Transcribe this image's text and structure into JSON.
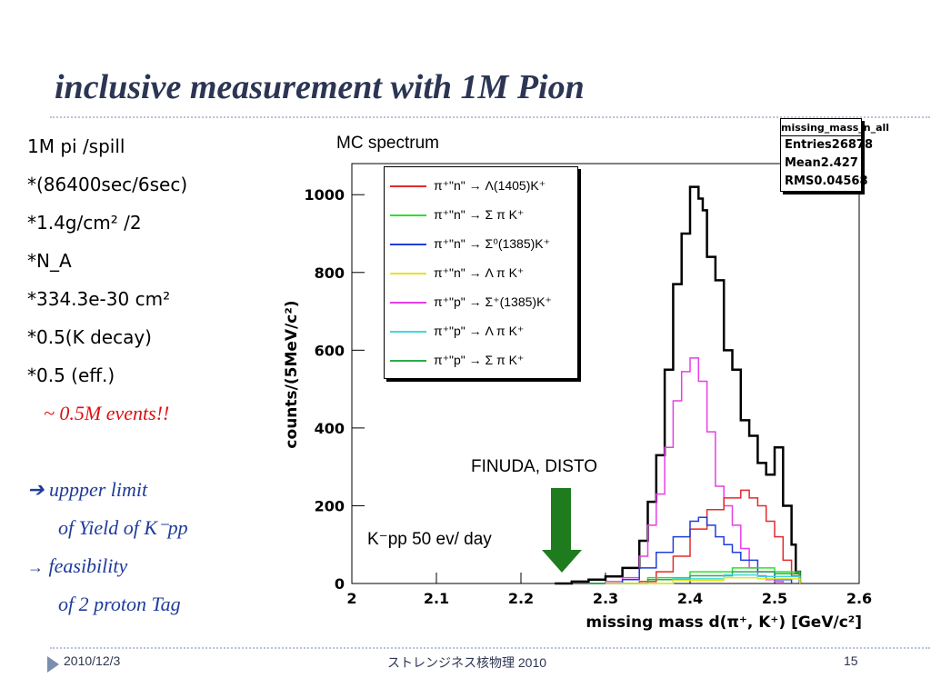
{
  "slide": {
    "title": "inclusive measurement with 1M Pion",
    "bullets": [
      "1M pi /spill",
      "*(86400sec/6sec)",
      "*1.4g/cm² /2",
      "*N_A",
      "*334.3e-30 cm²",
      "*0.5(K decay)",
      "*0.5 (eff.)"
    ],
    "events_note": "~ 0.5M events!!",
    "upper_limit": "uppper limit",
    "yield_line": "of Yield  of K⁻pp",
    "feasibility": "feasibility",
    "tag_line": "of 2 proton Tag",
    "mc_label": "MC spectrum",
    "finuda_label": "FINUDA, DISTO",
    "kpp_label": "K⁻pp 50 ev/ day",
    "footer_date": "2010/12/3",
    "footer_center": "ストレンジネス核物理 2010",
    "footer_page": "15",
    "colors": {
      "title": "#2c3553",
      "note": "#e01010",
      "accent": "#1f3c9a",
      "arrow": "#1e7b1e"
    }
  },
  "stats_box": {
    "name": "missing_mass_n_all",
    "rows": [
      {
        "label": "Entries",
        "value": "26878"
      },
      {
        "label": "Mean",
        "value": "2.427"
      },
      {
        "label": "RMS",
        "value": "0.04568"
      }
    ]
  },
  "chart_data": {
    "type": "line",
    "xlabel": "missing mass d(π⁺, K⁺) [GeV/c²]",
    "ylabel": "counts/(5MeV/c²)",
    "xlim": [
      2.0,
      2.6
    ],
    "ylim": [
      0,
      1080
    ],
    "x_ticks": [
      "2",
      "2.1",
      "2.2",
      "2.3",
      "2.4",
      "2.5",
      "2.6"
    ],
    "y_ticks": [
      "0",
      "200",
      "400",
      "600",
      "800",
      "1000"
    ],
    "grid": false,
    "legend_placement": "top-left",
    "legend": [
      {
        "label": "π⁺\"n\" → Λ(1405)K⁺",
        "color": "#e32b2b"
      },
      {
        "label": "π⁺\"n\" → Σ π K⁺",
        "color": "#2ce02c"
      },
      {
        "label": "π⁺\"n\" → Σ⁰(1385)K⁺",
        "color": "#1f3fd6"
      },
      {
        "label": "π⁺\"n\" → Λ π K⁺",
        "color": "#e6e61e"
      },
      {
        "label": "π⁺\"p\" → Σ⁺(1385)K⁺",
        "color": "#e63fe6"
      },
      {
        "label": "π⁺\"p\" → Λ π K⁺",
        "color": "#3fd8e0"
      },
      {
        "label": "π⁺\"p\" → Σ π K⁺",
        "color": "#2eaa4a"
      }
    ],
    "series": [
      {
        "color": "#000000",
        "x": [
          2.24,
          2.26,
          2.28,
          2.3,
          2.32,
          2.34,
          2.35,
          2.36,
          2.37,
          2.38,
          2.39,
          2.4,
          2.41,
          2.415,
          2.42,
          2.43,
          2.44,
          2.45,
          2.46,
          2.47,
          2.48,
          2.49,
          2.5,
          2.51,
          2.52,
          2.525,
          2.53
        ],
        "y": [
          0,
          5,
          10,
          18,
          40,
          110,
          210,
          330,
          550,
          770,
          900,
          1020,
          990,
          960,
          840,
          780,
          600,
          550,
          420,
          380,
          310,
          280,
          350,
          200,
          100,
          30,
          0
        ]
      },
      {
        "color": "#e63fe6",
        "x": [
          2.28,
          2.3,
          2.32,
          2.34,
          2.35,
          2.36,
          2.37,
          2.38,
          2.39,
          2.4,
          2.41,
          2.42,
          2.43,
          2.44,
          2.45,
          2.46,
          2.47,
          2.48,
          2.49,
          2.5,
          2.51
        ],
        "y": [
          0,
          5,
          15,
          70,
          150,
          230,
          350,
          470,
          545,
          580,
          520,
          390,
          250,
          200,
          150,
          90,
          40,
          20,
          10,
          5,
          0
        ]
      },
      {
        "color": "#e32b2b",
        "x": [
          2.3,
          2.34,
          2.36,
          2.38,
          2.4,
          2.42,
          2.44,
          2.46,
          2.47,
          2.48,
          2.49,
          2.5,
          2.51,
          2.52,
          2.53
        ],
        "y": [
          0,
          5,
          30,
          70,
          140,
          190,
          220,
          240,
          220,
          200,
          160,
          120,
          60,
          20,
          0
        ]
      },
      {
        "color": "#1f3fd6",
        "x": [
          2.28,
          2.32,
          2.34,
          2.36,
          2.38,
          2.4,
          2.41,
          2.42,
          2.43,
          2.44,
          2.45,
          2.46,
          2.48,
          2.5,
          2.52
        ],
        "y": [
          0,
          10,
          40,
          80,
          120,
          160,
          170,
          150,
          120,
          100,
          80,
          60,
          30,
          10,
          0
        ]
      },
      {
        "color": "#2ce02c",
        "x": [
          2.28,
          2.35,
          2.4,
          2.45,
          2.5,
          2.53
        ],
        "y": [
          0,
          15,
          30,
          40,
          30,
          0
        ]
      },
      {
        "color": "#2eaa4a",
        "x": [
          2.28,
          2.35,
          2.4,
          2.45,
          2.5,
          2.53
        ],
        "y": [
          0,
          10,
          20,
          30,
          25,
          0
        ]
      },
      {
        "color": "#3fd8e0",
        "x": [
          2.3,
          2.38,
          2.44,
          2.48,
          2.53
        ],
        "y": [
          0,
          12,
          22,
          18,
          0
        ]
      },
      {
        "color": "#e6e61e",
        "x": [
          2.3,
          2.38,
          2.44,
          2.48,
          2.53
        ],
        "y": [
          0,
          8,
          15,
          12,
          0
        ]
      }
    ]
  }
}
